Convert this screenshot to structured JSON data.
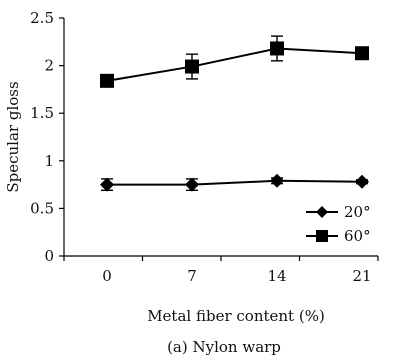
{
  "chart_data": {
    "type": "line",
    "x": [
      0,
      7,
      14,
      21
    ],
    "x_tick_labels": [
      "0",
      "7",
      "14",
      "21"
    ],
    "y_tick_labels": [
      "0",
      "0.5",
      "1",
      "1.5",
      "2",
      "2.5"
    ],
    "ylim": [
      0,
      2.5
    ],
    "yticks": [
      0,
      0.5,
      1,
      1.5,
      2,
      2.5
    ],
    "xlabel": "Metal fiber content (%)",
    "ylabel": "Specular gloss",
    "caption": "(a) Nylon warp",
    "grid": false,
    "legend_position": "bottom-right",
    "series": [
      {
        "name": "20°",
        "marker": "diamond",
        "color": "#000000",
        "values": [
          0.75,
          0.75,
          0.79,
          0.78
        ],
        "error": [
          0.06,
          0.06,
          0.03,
          0.02
        ]
      },
      {
        "name": "60°",
        "marker": "square",
        "color": "#000000",
        "values": [
          1.84,
          1.99,
          2.18,
          2.13
        ],
        "error": [
          0.03,
          0.13,
          0.13,
          0.03
        ]
      }
    ]
  }
}
